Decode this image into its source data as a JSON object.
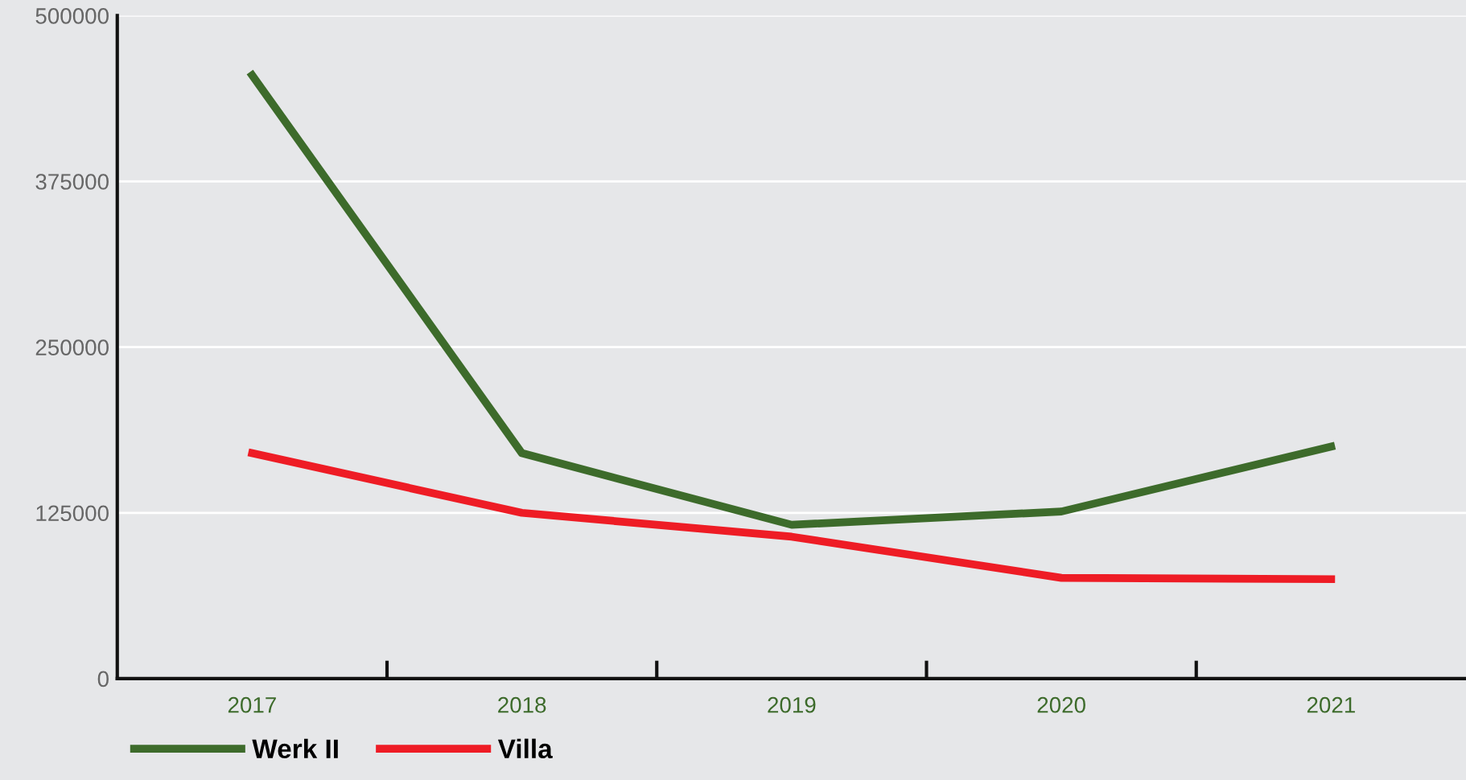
{
  "chart_data": {
    "type": "line",
    "categories": [
      "2017",
      "2018",
      "2019",
      "2020",
      "2021"
    ],
    "series": [
      {
        "name": "Werk II",
        "color": "#3d6b2b",
        "values": [
          455000,
          170000,
          116000,
          126000,
          175000
        ]
      },
      {
        "name": "Villa",
        "color": "#ee1c25",
        "values": [
          170000,
          125000,
          107000,
          76000,
          75000
        ]
      }
    ],
    "ylim": [
      0,
      500000
    ],
    "yticks": [
      0,
      125000,
      250000,
      375000,
      500000
    ],
    "grid": "y",
    "legend": "bottom left",
    "marker": "none",
    "line_style": "solid"
  }
}
